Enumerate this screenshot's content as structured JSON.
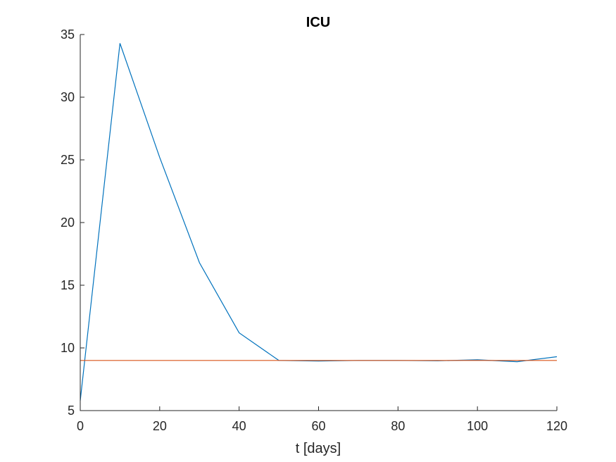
{
  "chart_data": {
    "type": "line",
    "title": "ICU",
    "xlabel": "t [days]",
    "ylabel": "",
    "xlim": [
      0,
      120
    ],
    "ylim": [
      5,
      35
    ],
    "xticks": [
      0,
      20,
      40,
      60,
      80,
      100,
      120
    ],
    "yticks": [
      5,
      10,
      15,
      20,
      25,
      30,
      35
    ],
    "grid": false,
    "legend": "none",
    "series": [
      {
        "color": "#0072BD",
        "x": [
          0,
          10,
          20,
          30,
          40,
          50,
          60,
          70,
          80,
          90,
          100,
          110,
          120
        ],
        "values": [
          5.8,
          34.3,
          25.2,
          16.8,
          11.2,
          9.0,
          8.95,
          9.0,
          9.0,
          8.97,
          9.05,
          8.9,
          9.3
        ]
      },
      {
        "color": "#D95319",
        "x": [
          0,
          120
        ],
        "values": [
          9.0,
          9.0
        ]
      }
    ]
  }
}
